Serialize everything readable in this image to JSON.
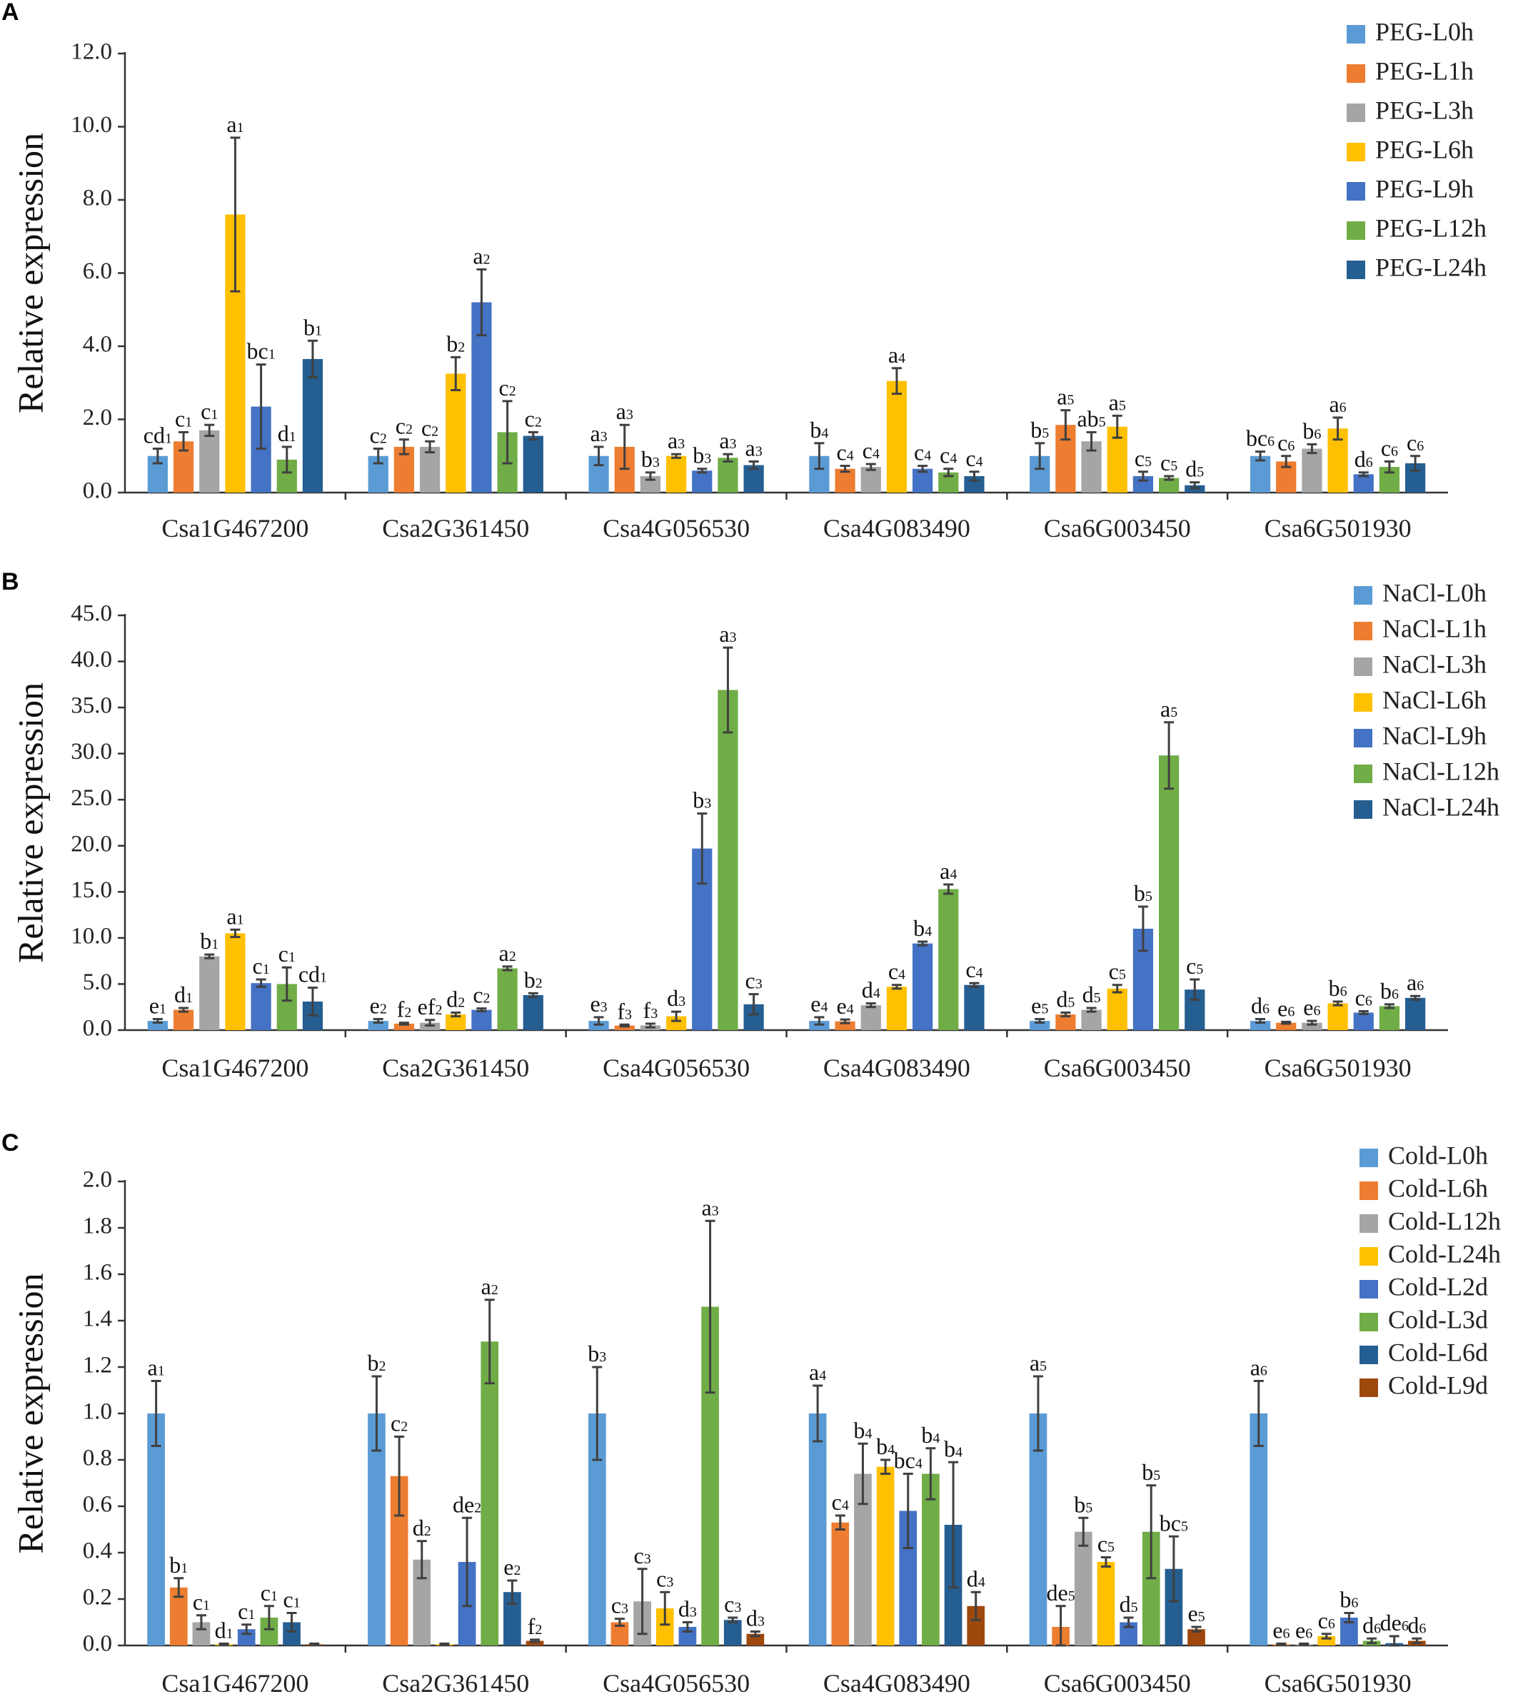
{
  "figure": {
    "panels": [
      "A",
      "B",
      "C"
    ]
  },
  "chart_data": [
    {
      "panel": "A",
      "type": "bar",
      "title": "",
      "xlabel": "",
      "ylabel": "Relative expression",
      "ylim": [
        0,
        12
      ],
      "yticks": [
        "0.0",
        "2.0",
        "4.0",
        "6.0",
        "8.0",
        "10.0",
        "12.0"
      ],
      "ytick_values": [
        0,
        2,
        4,
        6,
        8,
        10,
        12
      ],
      "categories": [
        "Csa1G467200",
        "Csa2G361450",
        "Csa4G056530",
        "Csa4G083490",
        "Csa6G003450",
        "Csa6G501930"
      ],
      "legend_position": "top-right",
      "series": [
        {
          "name": "PEG-L0h",
          "color": "#5B9BD5",
          "values": [
            1.0,
            1.0,
            1.0,
            1.0,
            1.0,
            1.0
          ],
          "errors": [
            0.2,
            0.2,
            0.25,
            0.35,
            0.35,
            0.12
          ],
          "labels": [
            [
              "cd",
              "1"
            ],
            [
              "c",
              "2"
            ],
            [
              "a",
              "3"
            ],
            [
              "b",
              "4"
            ],
            [
              "b",
              "5"
            ],
            [
              "bc",
              "6"
            ]
          ]
        },
        {
          "name": "PEG-L1h",
          "color": "#ED7D31",
          "values": [
            1.4,
            1.25,
            1.25,
            0.65,
            1.85,
            0.85
          ],
          "errors": [
            0.25,
            0.2,
            0.6,
            0.08,
            0.4,
            0.15
          ],
          "labels": [
            [
              "c",
              "1"
            ],
            [
              "c",
              "2"
            ],
            [
              "a",
              "3"
            ],
            [
              "c",
              "4"
            ],
            [
              "a",
              "5"
            ],
            [
              "c",
              "6"
            ]
          ]
        },
        {
          "name": "PEG-L3h",
          "color": "#A5A5A5",
          "values": [
            1.7,
            1.25,
            0.45,
            0.7,
            1.4,
            1.2
          ],
          "errors": [
            0.15,
            0.15,
            0.1,
            0.08,
            0.25,
            0.12
          ],
          "labels": [
            [
              "c",
              "1"
            ],
            [
              "c",
              "2"
            ],
            [
              "b",
              "3"
            ],
            [
              "c",
              "4"
            ],
            [
              "ab",
              "5"
            ],
            [
              "b",
              "6"
            ]
          ]
        },
        {
          "name": "PEG-L6h",
          "color": "#FFC000",
          "values": [
            7.6,
            3.25,
            1.0,
            3.05,
            1.8,
            1.75
          ],
          "errors": [
            2.1,
            0.45,
            0.05,
            0.35,
            0.3,
            0.3
          ],
          "labels": [
            [
              "a",
              "1"
            ],
            [
              "b",
              "2"
            ],
            [
              "a",
              "3"
            ],
            [
              "a",
              "4"
            ],
            [
              "a",
              "5"
            ],
            [
              "a",
              "6"
            ]
          ]
        },
        {
          "name": "PEG-L9h",
          "color": "#4472C4",
          "values": [
            2.35,
            5.2,
            0.6,
            0.65,
            0.45,
            0.5
          ],
          "errors": [
            1.15,
            0.9,
            0.05,
            0.08,
            0.12,
            0.05
          ],
          "labels": [
            [
              "bc",
              "1"
            ],
            [
              "a",
              "2"
            ],
            [
              "b",
              "3"
            ],
            [
              "c",
              "4"
            ],
            [
              "c",
              "5"
            ],
            [
              "d",
              "6"
            ]
          ]
        },
        {
          "name": "PEG-L12h",
          "color": "#70AD47",
          "values": [
            0.9,
            1.65,
            0.95,
            0.55,
            0.4,
            0.7
          ],
          "errors": [
            0.35,
            0.85,
            0.1,
            0.1,
            0.05,
            0.15
          ],
          "labels": [
            [
              "d",
              "1"
            ],
            [
              "c",
              "2"
            ],
            [
              "a",
              "3"
            ],
            [
              "c",
              "4"
            ],
            [
              "c",
              "5"
            ],
            [
              "c",
              "6"
            ]
          ]
        },
        {
          "name": "PEG-L24h",
          "color": "#255E91",
          "values": [
            3.65,
            1.55,
            0.75,
            0.45,
            0.2,
            0.8
          ],
          "errors": [
            0.5,
            0.1,
            0.1,
            0.12,
            0.08,
            0.2
          ],
          "labels": [
            [
              "b",
              "1"
            ],
            [
              "c",
              "2"
            ],
            [
              "a",
              "3"
            ],
            [
              "c",
              "4"
            ],
            [
              "d",
              "5"
            ],
            [
              "c",
              "6"
            ]
          ]
        }
      ]
    },
    {
      "panel": "B",
      "type": "bar",
      "title": "",
      "xlabel": "",
      "ylabel": "Relative expression",
      "ylim": [
        0,
        45
      ],
      "yticks": [
        "0.0",
        "5.0",
        "10.0",
        "15.0",
        "20.0",
        "25.0",
        "30.0",
        "35.0",
        "40.0",
        "45.0"
      ],
      "ytick_values": [
        0,
        5,
        10,
        15,
        20,
        25,
        30,
        35,
        40,
        45
      ],
      "categories": [
        "Csa1G467200",
        "Csa2G361450",
        "Csa4G056530",
        "Csa4G083490",
        "Csa6G003450",
        "Csa6G501930"
      ],
      "legend_position": "top-right",
      "series": [
        {
          "name": "NaCl-L0h",
          "color": "#5B9BD5",
          "values": [
            1.0,
            1.0,
            1.0,
            1.0,
            1.0,
            1.0
          ],
          "errors": [
            0.2,
            0.2,
            0.4,
            0.4,
            0.2,
            0.2
          ],
          "labels": [
            [
              "e",
              "1"
            ],
            [
              "e",
              "2"
            ],
            [
              "e",
              "3"
            ],
            [
              "e",
              "4"
            ],
            [
              "e",
              "5"
            ],
            [
              "d",
              "6"
            ]
          ]
        },
        {
          "name": "NaCl-L1h",
          "color": "#ED7D31",
          "values": [
            2.2,
            0.7,
            0.5,
            0.95,
            1.7,
            0.8
          ],
          "errors": [
            0.2,
            0.1,
            0.1,
            0.2,
            0.2,
            0.1
          ],
          "labels": [
            [
              "d",
              "1"
            ],
            [
              "f",
              "2"
            ],
            [
              "f",
              "3"
            ],
            [
              "e",
              "4"
            ],
            [
              "d",
              "5"
            ],
            [
              "e",
              "6"
            ]
          ]
        },
        {
          "name": "NaCl-L3h",
          "color": "#A5A5A5",
          "values": [
            8.0,
            0.8,
            0.5,
            2.7,
            2.2,
            0.8
          ],
          "errors": [
            0.2,
            0.3,
            0.2,
            0.2,
            0.2,
            0.2
          ],
          "labels": [
            [
              "b",
              "1"
            ],
            [
              "ef",
              "2"
            ],
            [
              "f",
              "3"
            ],
            [
              "d",
              "4"
            ],
            [
              "d",
              "5"
            ],
            [
              "e",
              "6"
            ]
          ]
        },
        {
          "name": "NaCl-L6h",
          "color": "#FFC000",
          "values": [
            10.5,
            1.7,
            1.5,
            4.7,
            4.5,
            2.9
          ],
          "errors": [
            0.4,
            0.2,
            0.5,
            0.2,
            0.4,
            0.2
          ],
          "labels": [
            [
              "a",
              "1"
            ],
            [
              "d",
              "2"
            ],
            [
              "d",
              "3"
            ],
            [
              "c",
              "4"
            ],
            [
              "c",
              "5"
            ],
            [
              "b",
              "6"
            ]
          ]
        },
        {
          "name": "NaCl-L9h",
          "color": "#4472C4",
          "values": [
            5.1,
            2.2,
            19.7,
            9.4,
            11.0,
            1.9
          ],
          "errors": [
            0.4,
            0.15,
            3.8,
            0.2,
            2.4,
            0.15
          ],
          "labels": [
            [
              "c",
              "1"
            ],
            [
              "c",
              "2"
            ],
            [
              "b",
              "3"
            ],
            [
              "b",
              "4"
            ],
            [
              "b",
              "5"
            ],
            [
              "c",
              "6"
            ]
          ]
        },
        {
          "name": "NaCl-L12h",
          "color": "#70AD47",
          "values": [
            5.0,
            6.7,
            36.9,
            15.3,
            29.8,
            2.6
          ],
          "errors": [
            1.8,
            0.2,
            4.6,
            0.5,
            3.6,
            0.2
          ],
          "labels": [
            [
              "c",
              "1"
            ],
            [
              "a",
              "2"
            ],
            [
              "a",
              "3"
            ],
            [
              "a",
              "4"
            ],
            [
              "a",
              "5"
            ],
            [
              "b",
              "6"
            ]
          ]
        },
        {
          "name": "NaCl-L24h",
          "color": "#255E91",
          "values": [
            3.1,
            3.8,
            2.8,
            4.9,
            4.4,
            3.5
          ],
          "errors": [
            1.5,
            0.2,
            1.1,
            0.2,
            1.1,
            0.2
          ],
          "labels": [
            [
              "cd",
              "1"
            ],
            [
              "b",
              "2"
            ],
            [
              "c",
              "3"
            ],
            [
              "c",
              "4"
            ],
            [
              "c",
              "5"
            ],
            [
              "a",
              "6"
            ]
          ]
        }
      ]
    },
    {
      "panel": "C",
      "type": "bar",
      "title": "",
      "xlabel": "",
      "ylabel": "Relative expression",
      "ylim": [
        0,
        2.0
      ],
      "yticks": [
        "0.0",
        "0.2",
        "0.4",
        "0.6",
        "0.8",
        "1.0",
        "1.2",
        "1.4",
        "1.6",
        "1.8",
        "2.0"
      ],
      "ytick_values": [
        0,
        0.2,
        0.4,
        0.6,
        0.8,
        1.0,
        1.2,
        1.4,
        1.6,
        1.8,
        2.0
      ],
      "categories": [
        "Csa1G467200",
        "Csa2G361450",
        "Csa4G056530",
        "Csa4G083490",
        "Csa6G003450",
        "Csa6G501930"
      ],
      "legend_position": "top-right",
      "series": [
        {
          "name": "Cold-L0h",
          "color": "#5B9BD5",
          "values": [
            1.0,
            1.0,
            1.0,
            1.0,
            1.0,
            1.0
          ],
          "errors": [
            0.14,
            0.16,
            0.2,
            0.12,
            0.16,
            0.14
          ],
          "labels": [
            [
              "a",
              "1"
            ],
            [
              "b",
              "2"
            ],
            [
              "b",
              "3"
            ],
            [
              "a",
              "4"
            ],
            [
              "a",
              "5"
            ],
            [
              "a",
              "6"
            ]
          ]
        },
        {
          "name": "Cold-L6h",
          "color": "#ED7D31",
          "values": [
            0.25,
            0.73,
            0.1,
            0.53,
            0.08,
            0.005
          ],
          "errors": [
            0.04,
            0.17,
            0.015,
            0.03,
            0.09,
            0.003
          ],
          "labels": [
            [
              "b",
              "1"
            ],
            [
              "c",
              "2"
            ],
            [
              "c",
              "3"
            ],
            [
              "c",
              "4"
            ],
            [
              "de",
              "5"
            ],
            [
              "e",
              "6"
            ]
          ]
        },
        {
          "name": "Cold-L12h",
          "color": "#A5A5A5",
          "values": [
            0.1,
            0.37,
            0.19,
            0.74,
            0.49,
            0.005
          ],
          "errors": [
            0.03,
            0.08,
            0.14,
            0.13,
            0.06,
            0.003
          ],
          "labels": [
            [
              "c",
              "1"
            ],
            [
              "d",
              "2"
            ],
            [
              "c",
              "3"
            ],
            [
              "b",
              "4"
            ],
            [
              "b",
              "5"
            ],
            [
              "e",
              "6"
            ]
          ]
        },
        {
          "name": "Cold-L24h",
          "color": "#FFC000",
          "values": [
            0.005,
            0.005,
            0.16,
            0.77,
            0.36,
            0.04
          ],
          "errors": [
            0.003,
            0.003,
            0.07,
            0.03,
            0.02,
            0.01
          ],
          "labels": [
            [
              "d",
              "1"
            ],
            [
              "",
              ""
            ],
            [
              "c",
              "3"
            ],
            [
              "b",
              "4"
            ],
            [
              "c",
              "5"
            ],
            [
              "c",
              "6"
            ]
          ]
        },
        {
          "name": "Cold-L2d",
          "color": "#4472C4",
          "values": [
            0.07,
            0.36,
            0.08,
            0.58,
            0.1,
            0.12
          ],
          "errors": [
            0.02,
            0.19,
            0.02,
            0.16,
            0.02,
            0.02
          ],
          "labels": [
            [
              "c",
              "1"
            ],
            [
              "de",
              "2"
            ],
            [
              "d",
              "3"
            ],
            [
              "bc",
              "4"
            ],
            [
              "d",
              "5"
            ],
            [
              "b",
              "6"
            ]
          ]
        },
        {
          "name": "Cold-L3d",
          "color": "#70AD47",
          "values": [
            0.12,
            1.31,
            1.46,
            0.74,
            0.49,
            0.02
          ],
          "errors": [
            0.05,
            0.18,
            0.37,
            0.11,
            0.2,
            0.01
          ],
          "labels": [
            [
              "c",
              "1"
            ],
            [
              "a",
              "2"
            ],
            [
              "a",
              "3"
            ],
            [
              "b",
              "4"
            ],
            [
              "b",
              "5"
            ],
            [
              "d",
              "6"
            ]
          ]
        },
        {
          "name": "Cold-L6d",
          "color": "#255E91",
          "values": [
            0.1,
            0.23,
            0.11,
            0.52,
            0.33,
            0.01
          ],
          "errors": [
            0.04,
            0.05,
            0.01,
            0.27,
            0.14,
            0.03
          ],
          "labels": [
            [
              "c",
              "1"
            ],
            [
              "e",
              "2"
            ],
            [
              "c",
              "3"
            ],
            [
              "b",
              "4"
            ],
            [
              "bc",
              "5"
            ],
            [
              "de",
              "6"
            ]
          ]
        },
        {
          "name": "Cold-L9d",
          "color": "#9E480E",
          "values": [
            0.005,
            0.02,
            0.05,
            0.17,
            0.07,
            0.02
          ],
          "errors": [
            0.003,
            0.005,
            0.01,
            0.06,
            0.01,
            0.01
          ],
          "labels": [
            [
              "",
              ""
            ],
            [
              "f",
              "2"
            ],
            [
              "d",
              "3"
            ],
            [
              "d",
              "4"
            ],
            [
              "e",
              "5"
            ],
            [
              "d",
              "6"
            ]
          ]
        }
      ]
    }
  ]
}
